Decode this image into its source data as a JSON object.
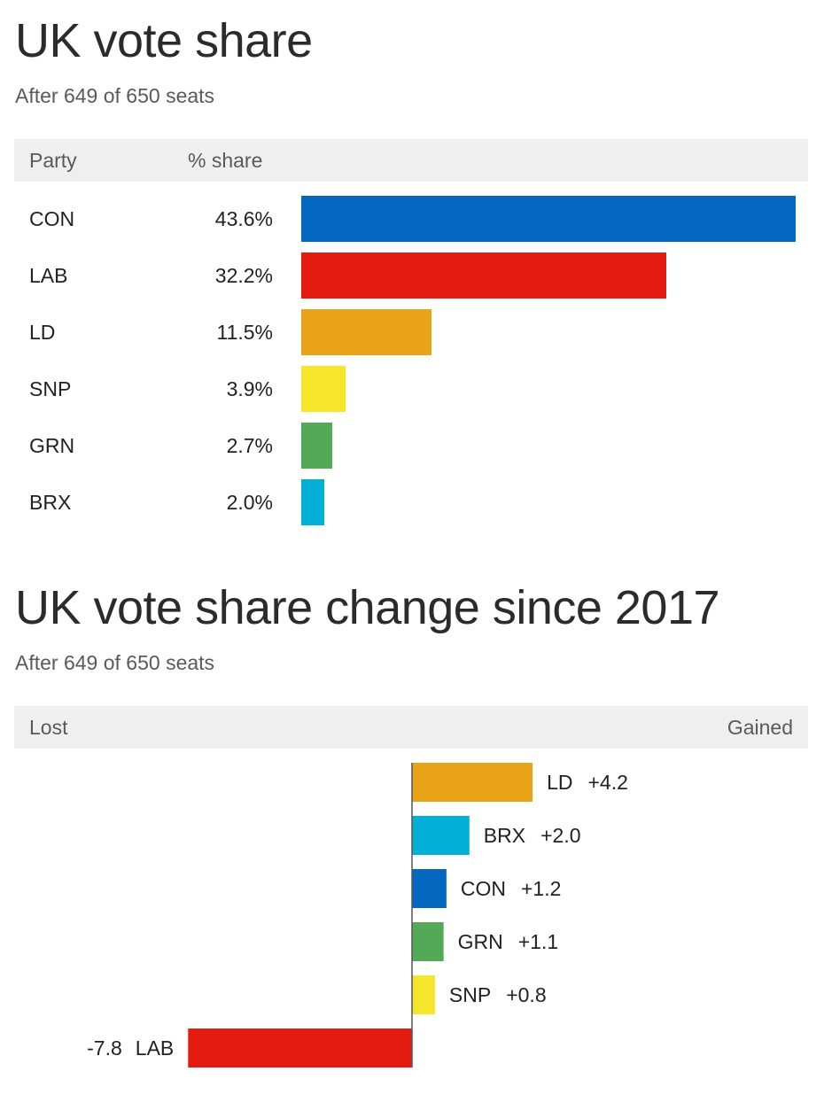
{
  "chart_data": [
    {
      "type": "bar",
      "title": "UK vote share",
      "subtitle": "After 649 of 650 seats",
      "columns": [
        "Party",
        "% share"
      ],
      "categories": [
        "CON",
        "LAB",
        "LD",
        "SNP",
        "GRN",
        "BRX"
      ],
      "values": [
        43.6,
        32.2,
        11.5,
        3.9,
        2.7,
        2.0
      ],
      "value_labels": [
        "43.6%",
        "32.2%",
        "11.5%",
        "3.9%",
        "2.7%",
        "2.0%"
      ],
      "colors": [
        "#0567c0",
        "#e41b10",
        "#e9a318",
        "#f6e52a",
        "#53a955",
        "#02b0d6"
      ],
      "orientation": "horizontal"
    },
    {
      "type": "bar",
      "title": "UK vote share change since 2017",
      "subtitle": "After 649 of 650 seats",
      "header_left": "Lost",
      "header_right": "Gained",
      "categories": [
        "LD",
        "BRX",
        "CON",
        "GRN",
        "SNP",
        "LAB"
      ],
      "values": [
        4.2,
        2.0,
        1.2,
        1.1,
        0.8,
        -7.8
      ],
      "value_labels": [
        "+4.2",
        "+2.0",
        "+1.2",
        "+1.1",
        "+0.8",
        "-7.8"
      ],
      "colors": [
        "#e9a318",
        "#02b0d6",
        "#0567c0",
        "#53a955",
        "#f6e52a",
        "#e41b10"
      ],
      "orientation": "horizontal-diverging"
    }
  ]
}
